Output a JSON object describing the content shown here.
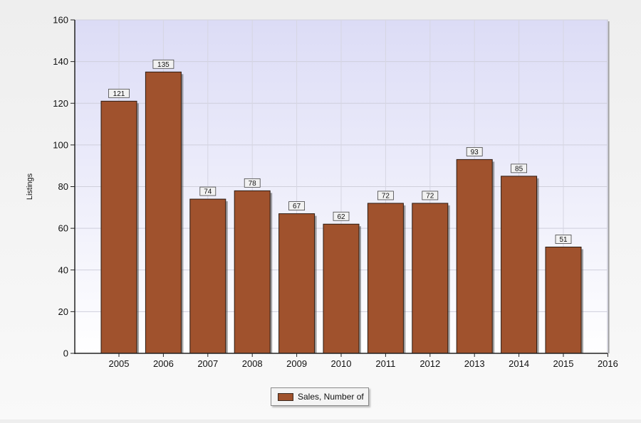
{
  "chart_data": {
    "type": "bar",
    "title": "",
    "xlabel": "",
    "ylabel": "Listings",
    "categories": [
      "2005",
      "2006",
      "2007",
      "2008",
      "2009",
      "2010",
      "2011",
      "2012",
      "2013",
      "2014",
      "2015"
    ],
    "x_ticks": [
      "2005",
      "2006",
      "2007",
      "2008",
      "2009",
      "2010",
      "2011",
      "2012",
      "2013",
      "2014",
      "2015",
      "2016"
    ],
    "series": [
      {
        "name": "Sales, Number of",
        "values": [
          121,
          135,
          74,
          78,
          67,
          62,
          72,
          72,
          93,
          85,
          51
        ],
        "data_labels": [
          "121",
          "135",
          "74",
          "78",
          "67",
          "62",
          "72",
          "72",
          "93",
          "85",
          "51"
        ],
        "color": "#a0522d"
      }
    ],
    "ylim": [
      0,
      160
    ],
    "y_ticks": [
      0,
      20,
      40,
      60,
      80,
      100,
      120,
      140,
      160
    ],
    "grid": true,
    "legend_position": "bottom-center",
    "plot_background": [
      "#dcdcf6",
      "#ffffff"
    ]
  }
}
